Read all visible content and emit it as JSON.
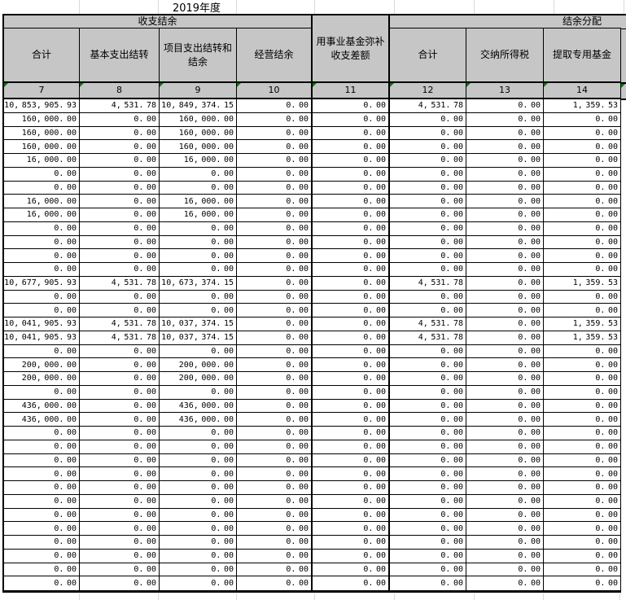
{
  "sheet": {
    "year_label": "2019年度"
  },
  "table": {
    "group_headers": {
      "shouzhi_jieyu": "收支结余",
      "jieyu_fenpei": "结余分配"
    },
    "columns": [
      {
        "label": "合计",
        "number": "7"
      },
      {
        "label": "基本支出结转",
        "number": "8"
      },
      {
        "label": "项目支出结转和结余",
        "number": "9"
      },
      {
        "label": "经营结余",
        "number": "10"
      },
      {
        "label": "用事业基金弥补收支差额",
        "number": "11"
      },
      {
        "label": "合计",
        "number": "12"
      },
      {
        "label": "交纳所得税",
        "number": "13"
      },
      {
        "label": "提取专用基金",
        "number": "14"
      }
    ],
    "rows": [
      [
        "10,853,905.93",
        "4,531.78",
        "10,849,374.15",
        "0.00",
        "0.00",
        "4,531.78",
        "0.00",
        "1,359.53"
      ],
      [
        "160,000.00",
        "0.00",
        "160,000.00",
        "0.00",
        "0.00",
        "0.00",
        "0.00",
        "0.00"
      ],
      [
        "160,000.00",
        "0.00",
        "160,000.00",
        "0.00",
        "0.00",
        "0.00",
        "0.00",
        "0.00"
      ],
      [
        "160,000.00",
        "0.00",
        "160,000.00",
        "0.00",
        "0.00",
        "0.00",
        "0.00",
        "0.00"
      ],
      [
        "16,000.00",
        "0.00",
        "16,000.00",
        "0.00",
        "0.00",
        "0.00",
        "0.00",
        "0.00"
      ],
      [
        "0.00",
        "0.00",
        "0.00",
        "0.00",
        "0.00",
        "0.00",
        "0.00",
        "0.00"
      ],
      [
        "0.00",
        "0.00",
        "0.00",
        "0.00",
        "0.00",
        "0.00",
        "0.00",
        "0.00"
      ],
      [
        "16,000.00",
        "0.00",
        "16,000.00",
        "0.00",
        "0.00",
        "0.00",
        "0.00",
        "0.00"
      ],
      [
        "16,000.00",
        "0.00",
        "16,000.00",
        "0.00",
        "0.00",
        "0.00",
        "0.00",
        "0.00"
      ],
      [
        "0.00",
        "0.00",
        "0.00",
        "0.00",
        "0.00",
        "0.00",
        "0.00",
        "0.00"
      ],
      [
        "0.00",
        "0.00",
        "0.00",
        "0.00",
        "0.00",
        "0.00",
        "0.00",
        "0.00"
      ],
      [
        "0.00",
        "0.00",
        "0.00",
        "0.00",
        "0.00",
        "0.00",
        "0.00",
        "0.00"
      ],
      [
        "0.00",
        "0.00",
        "0.00",
        "0.00",
        "0.00",
        "0.00",
        "0.00",
        "0.00"
      ],
      [
        "10,677,905.93",
        "4,531.78",
        "10,673,374.15",
        "0.00",
        "0.00",
        "4,531.78",
        "0.00",
        "1,359.53"
      ],
      [
        "0.00",
        "0.00",
        "0.00",
        "0.00",
        "0.00",
        "0.00",
        "0.00",
        "0.00"
      ],
      [
        "0.00",
        "0.00",
        "0.00",
        "0.00",
        "0.00",
        "0.00",
        "0.00",
        "0.00"
      ],
      [
        "10,041,905.93",
        "4,531.78",
        "10,037,374.15",
        "0.00",
        "0.00",
        "4,531.78",
        "0.00",
        "1,359.53"
      ],
      [
        "10,041,905.93",
        "4,531.78",
        "10,037,374.15",
        "0.00",
        "0.00",
        "4,531.78",
        "0.00",
        "1,359.53"
      ],
      [
        "0.00",
        "0.00",
        "0.00",
        "0.00",
        "0.00",
        "0.00",
        "0.00",
        "0.00"
      ],
      [
        "200,000.00",
        "0.00",
        "200,000.00",
        "0.00",
        "0.00",
        "0.00",
        "0.00",
        "0.00"
      ],
      [
        "200,000.00",
        "0.00",
        "200,000.00",
        "0.00",
        "0.00",
        "0.00",
        "0.00",
        "0.00"
      ],
      [
        "0.00",
        "0.00",
        "0.00",
        "0.00",
        "0.00",
        "0.00",
        "0.00",
        "0.00"
      ],
      [
        "436,000.00",
        "0.00",
        "436,000.00",
        "0.00",
        "0.00",
        "0.00",
        "0.00",
        "0.00"
      ],
      [
        "436,000.00",
        "0.00",
        "436,000.00",
        "0.00",
        "0.00",
        "0.00",
        "0.00",
        "0.00"
      ],
      [
        "0.00",
        "0.00",
        "0.00",
        "0.00",
        "0.00",
        "0.00",
        "0.00",
        "0.00"
      ],
      [
        "0.00",
        "0.00",
        "0.00",
        "0.00",
        "0.00",
        "0.00",
        "0.00",
        "0.00"
      ],
      [
        "0.00",
        "0.00",
        "0.00",
        "0.00",
        "0.00",
        "0.00",
        "0.00",
        "0.00"
      ],
      [
        "0.00",
        "0.00",
        "0.00",
        "0.00",
        "0.00",
        "0.00",
        "0.00",
        "0.00"
      ],
      [
        "0.00",
        "0.00",
        "0.00",
        "0.00",
        "0.00",
        "0.00",
        "0.00",
        "0.00"
      ],
      [
        "0.00",
        "0.00",
        "0.00",
        "0.00",
        "0.00",
        "0.00",
        "0.00",
        "0.00"
      ],
      [
        "0.00",
        "0.00",
        "0.00",
        "0.00",
        "0.00",
        "0.00",
        "0.00",
        "0.00"
      ],
      [
        "0.00",
        "0.00",
        "0.00",
        "0.00",
        "0.00",
        "0.00",
        "0.00",
        "0.00"
      ],
      [
        "0.00",
        "0.00",
        "0.00",
        "0.00",
        "0.00",
        "0.00",
        "0.00",
        "0.00"
      ],
      [
        "0.00",
        "0.00",
        "0.00",
        "0.00",
        "0.00",
        "0.00",
        "0.00",
        "0.00"
      ],
      [
        "0.00",
        "0.00",
        "0.00",
        "0.00",
        "0.00",
        "0.00",
        "0.00",
        "0.00"
      ],
      [
        "0.00",
        "0.00",
        "0.00",
        "0.00",
        "0.00",
        "0.00",
        "0.00",
        "0.00"
      ]
    ]
  },
  "colors": {
    "header_bg": "#c6c6c6",
    "border": "#000000",
    "gridline": "#d9d9d9",
    "corner_triangle": "#007a00"
  }
}
